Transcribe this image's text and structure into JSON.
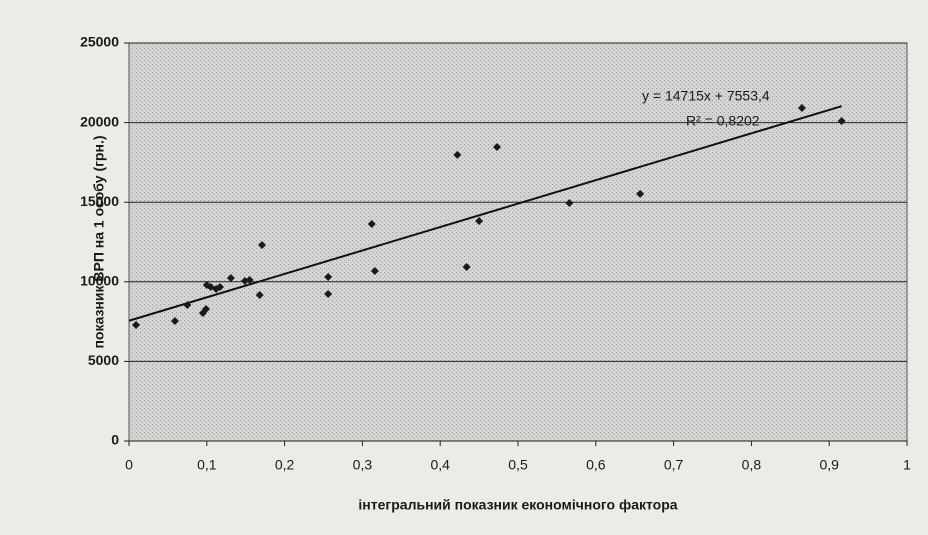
{
  "chart_data": {
    "type": "scatter",
    "x_label": "інтегральний показник економічного фактора",
    "y_label": "показник ВРП на 1 особу (грн.)",
    "xlim": [
      0,
      1
    ],
    "xticks": [
      0,
      {
        "value": 0.1,
        "label": "0,1"
      },
      {
        "value": 0.2,
        "label": "0,2"
      },
      {
        "value": 0.3,
        "label": "0,3"
      },
      {
        "value": 0.4,
        "label": "0,4"
      },
      {
        "value": 0.5,
        "label": "0,5"
      },
      {
        "value": 0.6,
        "label": "0,6"
      },
      {
        "value": 0.7,
        "label": "0,7"
      },
      {
        "value": 0.8,
        "label": "0,8"
      },
      {
        "value": 0.9,
        "label": "0,9"
      },
      1
    ],
    "ylim": [
      0,
      25000
    ],
    "yticks": [
      0,
      5000,
      10000,
      15000,
      20000,
      25000
    ],
    "grid": true,
    "color": "#1a1a1a",
    "x": [
      0.009,
      0.059,
      0.075,
      0.095,
      0.099,
      0.1,
      0.105,
      0.112,
      0.117,
      0.131,
      0.149,
      0.155,
      0.168,
      0.171,
      0.256,
      0.256,
      0.312,
      0.316,
      0.422,
      0.434,
      0.45,
      0.473,
      0.566,
      0.657,
      0.865,
      0.916
    ],
    "values": [
      7290,
      7540,
      8540,
      8040,
      8290,
      9800,
      9670,
      9550,
      9670,
      10240,
      10050,
      10110,
      9170,
      12310,
      10300,
      9230,
      13630,
      10680,
      17970,
      10930,
      13820,
      18470,
      14950,
      15520,
      20920,
      20100
    ],
    "trendline": {
      "slope": 14715,
      "intercept": 7553.4,
      "equation": "y = 14715x + 7553,4",
      "r2": "R² = 0,8202"
    }
  }
}
